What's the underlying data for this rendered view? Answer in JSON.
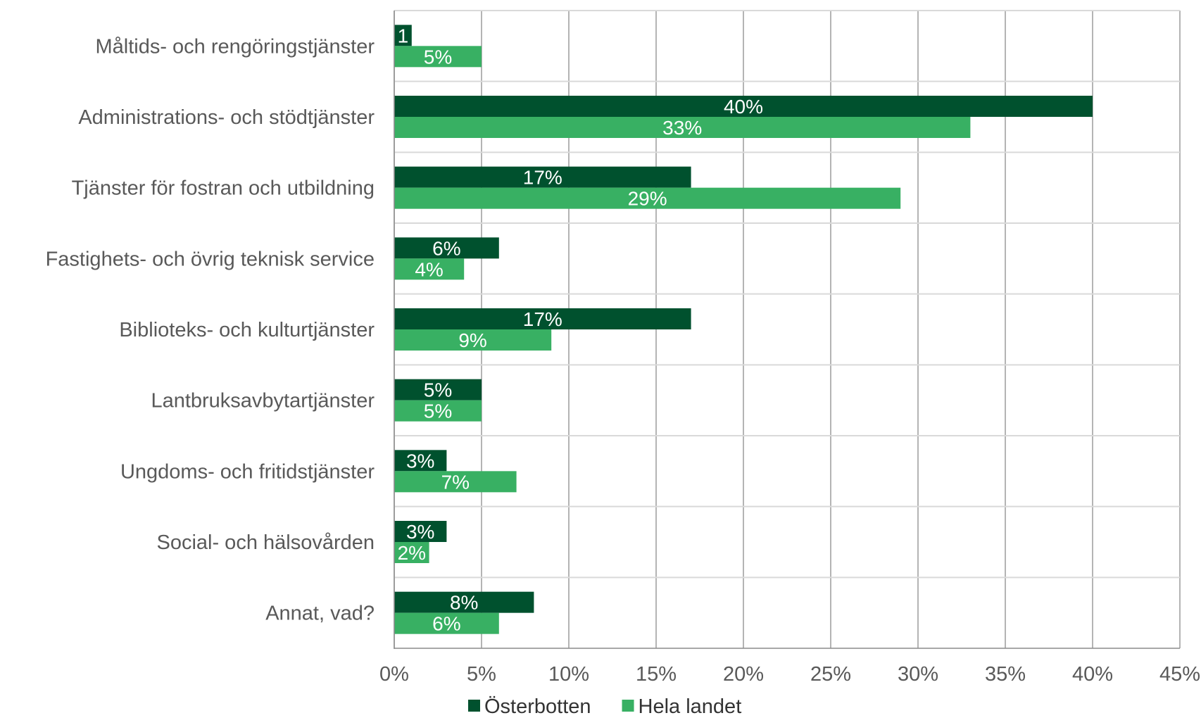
{
  "chart_data": {
    "type": "bar",
    "orientation": "horizontal",
    "categories": [
      "Måltids- och rengöringstjänster",
      "Administrations- och stödtjänster",
      "Tjänster för fostran och utbildning",
      "Fastighets- och övrig teknisk service",
      "Biblioteks- och kulturtjänster",
      "Lantbruksavbytartjänster",
      "Ungdoms- och fritidstjänster",
      "Social- och hälsovården",
      "Annat, vad?"
    ],
    "series": [
      {
        "name": "Österbotten",
        "color": "#00512E",
        "values": [
          1,
          40,
          17,
          6,
          17,
          5,
          3,
          3,
          8
        ],
        "labels": [
          "1",
          "40%",
          "17%",
          "6%",
          "17%",
          "5%",
          "3%",
          "3%",
          "8%"
        ]
      },
      {
        "name": "Hela landet",
        "color": "#38B063",
        "values": [
          5,
          33,
          29,
          4,
          9,
          5,
          7,
          2,
          6
        ],
        "labels": [
          "5%",
          "33%",
          "29%",
          "4%",
          "9%",
          "5%",
          "7%",
          "2%",
          "6%"
        ]
      }
    ],
    "xlim": [
      0,
      45
    ],
    "ticks": [
      "0%",
      "5%",
      "10%",
      "15%",
      "20%",
      "25%",
      "30%",
      "35%",
      "40%",
      "45%"
    ],
    "grid": true,
    "legend_position": "bottom"
  }
}
